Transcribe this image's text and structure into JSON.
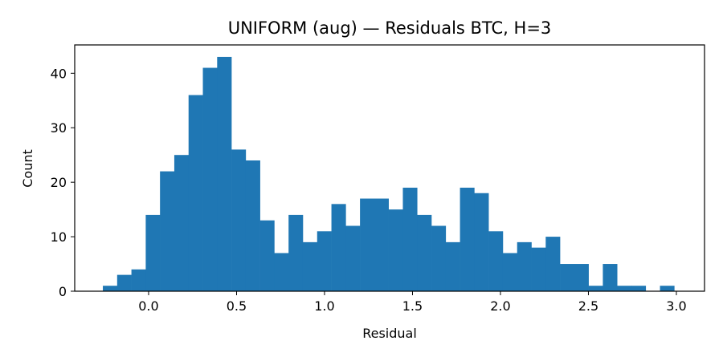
{
  "chart_data": {
    "type": "bar",
    "title": "UNIFORM (aug) — Residuals BTC, H=3",
    "xlabel": "Residual",
    "ylabel": "Count",
    "color": "#1f77b4",
    "xlim": [
      -0.42,
      3.16
    ],
    "ylim": [
      0,
      45.2
    ],
    "grid": false,
    "xticks": [
      0.0,
      0.5,
      1.0,
      1.5,
      2.0,
      2.5,
      3.0
    ],
    "xtick_labels": [
      "0.0",
      "0.5",
      "1.0",
      "1.5",
      "2.0",
      "2.5",
      "3.0"
    ],
    "yticks": [
      0,
      10,
      20,
      30,
      40
    ],
    "ytick_labels": [
      "0",
      "10",
      "20",
      "30",
      "40"
    ],
    "bins": {
      "start": -0.26,
      "width": 0.0812,
      "counts": [
        1,
        3,
        4,
        14,
        22,
        25,
        36,
        41,
        43,
        26,
        24,
        13,
        7,
        14,
        9,
        11,
        16,
        12,
        17,
        17,
        15,
        19,
        14,
        12,
        9,
        19,
        18,
        11,
        7,
        9,
        8,
        10,
        5,
        5,
        1,
        5,
        1,
        1,
        0,
        1
      ]
    }
  }
}
